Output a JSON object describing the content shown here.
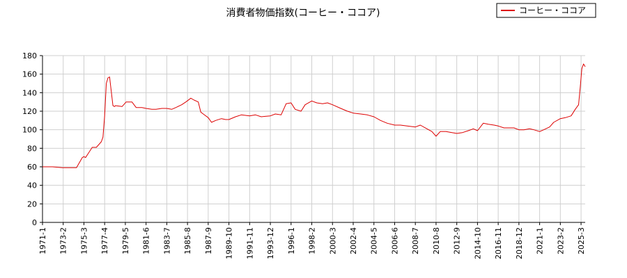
{
  "chart_data": {
    "type": "line",
    "title": "消費者物価指数(コーヒー・ココア)",
    "xlabel": "",
    "ylabel": "",
    "ylim": [
      0,
      180
    ],
    "yticks": [
      0,
      20,
      40,
      60,
      80,
      100,
      120,
      140,
      160,
      180
    ],
    "xlim": [
      "1971-1",
      "2025-8"
    ],
    "xticks": [
      "1971-1",
      "1973-2",
      "1975-3",
      "1977-4",
      "1979-5",
      "1981-6",
      "1983-7",
      "1985-8",
      "1987-9",
      "1989-10",
      "1991-11",
      "1993-12",
      "1996-1",
      "1998-2",
      "2000-3",
      "2002-4",
      "2004-5",
      "2006-6",
      "2008-7",
      "2010-8",
      "2012-9",
      "2014-10",
      "2016-11",
      "2018-12",
      "2021-1",
      "2023-2",
      "2025-3"
    ],
    "grid": true,
    "legend_position": "top-right",
    "series": [
      {
        "name": "コーヒー・ココア",
        "color": "#dd0000",
        "x": [
          "1971-1",
          "1972-1",
          "1973-1",
          "1973-7",
          "1974-1",
          "1974-6",
          "1975-1",
          "1975-3",
          "1975-5",
          "1976-1",
          "1976-6",
          "1976-12",
          "1977-2",
          "1977-4",
          "1977-6",
          "1977-8",
          "1977-10",
          "1978-2",
          "1978-4",
          "1978-5",
          "1979-1",
          "1979-6",
          "1980-1",
          "1980-6",
          "1981-1",
          "1981-6",
          "1982-1",
          "1982-6",
          "1983-1",
          "1983-7",
          "1984-1",
          "1984-6",
          "1985-1",
          "1985-6",
          "1985-12",
          "1986-4",
          "1986-9",
          "1986-12",
          "1987-3",
          "1987-9",
          "1988-1",
          "1988-6",
          "1989-1",
          "1989-6",
          "1989-10",
          "1990-6",
          "1991-1",
          "1991-11",
          "1992-6",
          "1993-1",
          "1993-12",
          "1994-6",
          "1995-1",
          "1995-7",
          "1996-1",
          "1996-6",
          "1997-1",
          "1997-6",
          "1998-2",
          "1998-8",
          "1999-3",
          "1999-9",
          "2000-3",
          "2001-1",
          "2001-9",
          "2002-4",
          "2003-1",
          "2003-9",
          "2004-5",
          "2005-1",
          "2005-9",
          "2006-6",
          "2007-1",
          "2007-9",
          "2008-7",
          "2009-1",
          "2009-9",
          "2010-3",
          "2010-8",
          "2011-1",
          "2011-8",
          "2012-3",
          "2012-9",
          "2013-4",
          "2013-11",
          "2014-5",
          "2014-10",
          "2015-5",
          "2015-11",
          "2016-6",
          "2016-11",
          "2017-6",
          "2018-1",
          "2018-6",
          "2018-12",
          "2019-6",
          "2020-1",
          "2020-6",
          "2021-1",
          "2021-6",
          "2022-1",
          "2022-6",
          "2023-2",
          "2023-8",
          "2024-3",
          "2024-8",
          "2024-12",
          "2025-2",
          "2025-4",
          "2025-6",
          "2025-8"
        ],
        "y": [
          60,
          60,
          59,
          59,
          59,
          59,
          70,
          71,
          70,
          81,
          81,
          87,
          92,
          115,
          150,
          156,
          157,
          126,
          125,
          126,
          125,
          130,
          130,
          124,
          124,
          123,
          122,
          122,
          123,
          123,
          122,
          124,
          127,
          130,
          134,
          132,
          130,
          119,
          117,
          113,
          108,
          110,
          112,
          111,
          111,
          114,
          116,
          115,
          116,
          114,
          115,
          117,
          116,
          128,
          129,
          122,
          120,
          127,
          131,
          129,
          128,
          129,
          127,
          123,
          120,
          118,
          117,
          116,
          114,
          110,
          107,
          105,
          105,
          104,
          103,
          105,
          101,
          98,
          93,
          98,
          98,
          97,
          96,
          97,
          99,
          101,
          99,
          107,
          106,
          105,
          104,
          102,
          102,
          102,
          100,
          100,
          101,
          100,
          98,
          100,
          103,
          108,
          112,
          113,
          115,
          122,
          127,
          146,
          166,
          171,
          168
        ]
      }
    ]
  }
}
